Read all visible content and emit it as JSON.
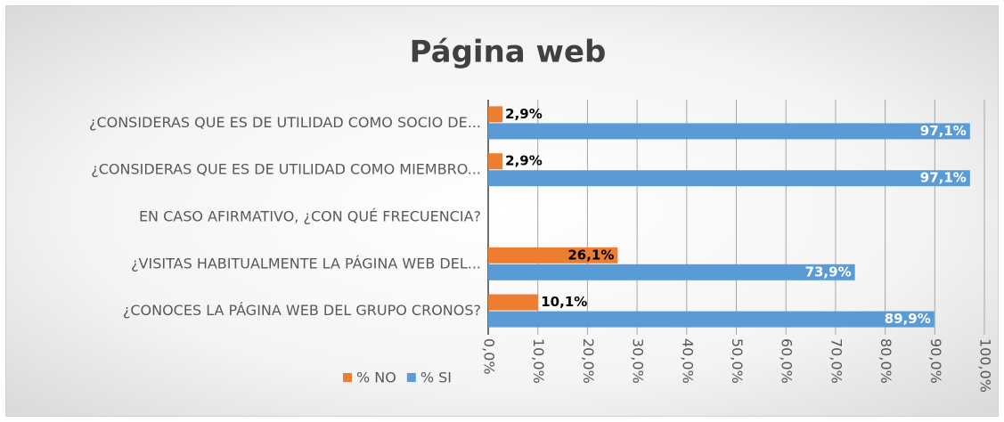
{
  "chart_data": {
    "type": "hbar",
    "title": "Página web",
    "categories": [
      "¿CONSIDERAS QUE ES DE UTILIDAD COMO SOCIO DE...",
      "¿CONSIDERAS QUE ES DE UTILIDAD COMO MIEMBRO...",
      "EN CASO AFIRMATIVO, ¿CON QUÉ FRECUENCIA?",
      "¿VISITAS HABITUALMENTE LA PÁGINA WEB DEL...",
      "¿CONOCES LA PÁGINA WEB DEL GRUPO CRONOS?"
    ],
    "series": [
      {
        "name": "% NO",
        "color": "#ed7d31",
        "values": [
          2.9,
          2.9,
          null,
          26.1,
          10.1
        ],
        "value_labels": [
          "2,9%",
          "2,9%",
          null,
          "26,1%",
          "10,1%"
        ]
      },
      {
        "name": "% SI",
        "color": "#5b9bd5",
        "values": [
          97.1,
          97.1,
          null,
          73.9,
          89.9
        ],
        "value_labels": [
          "97,1%",
          "97,1%",
          null,
          "73,9%",
          "89,9%"
        ]
      }
    ],
    "xlim": [
      0,
      100
    ],
    "xticks": [
      {
        "value": 0,
        "label": "0,0%"
      },
      {
        "value": 10,
        "label": "10,0%"
      },
      {
        "value": 20,
        "label": "20,0%"
      },
      {
        "value": 30,
        "label": "30,0%"
      },
      {
        "value": 40,
        "label": "40,0%"
      },
      {
        "value": 50,
        "label": "50,0%"
      },
      {
        "value": 60,
        "label": "60,0%"
      },
      {
        "value": 70,
        "label": "70,0%"
      },
      {
        "value": 80,
        "label": "80,0%"
      },
      {
        "value": 90,
        "label": "90,0%"
      },
      {
        "value": 100,
        "label": "100,0%"
      }
    ],
    "grid": true,
    "legend": "bottom-left"
  }
}
